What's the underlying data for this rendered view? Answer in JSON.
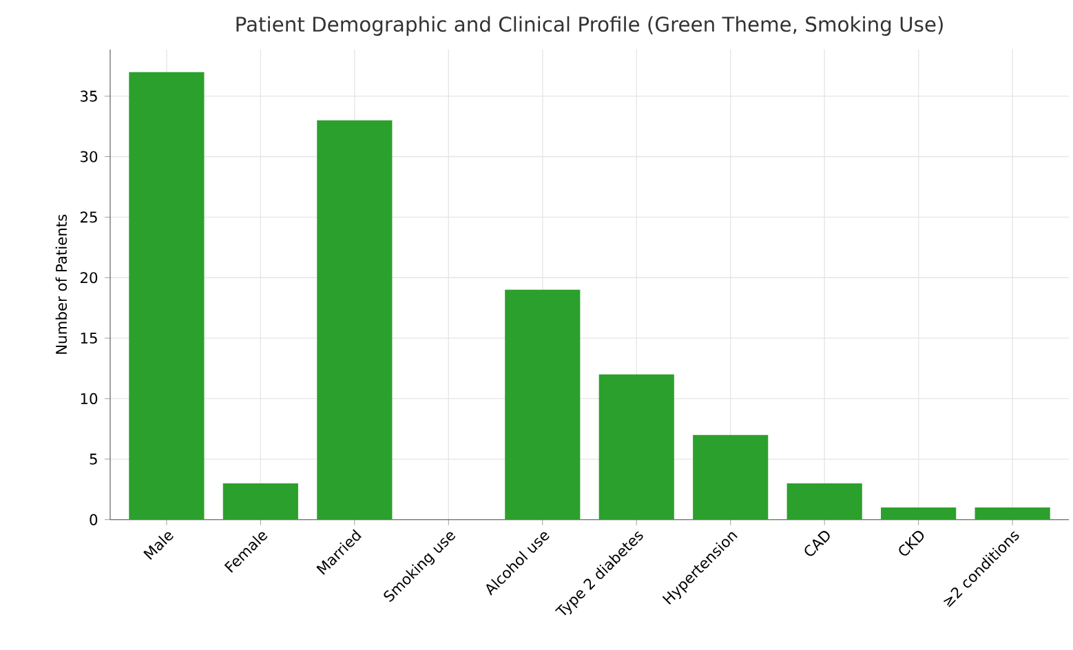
{
  "chart_data": {
    "type": "bar",
    "title": "Patient Demographic and Clinical Profile (Green Theme, Smoking Use)",
    "ylabel": "Number of Patients",
    "categories": [
      "Male",
      "Female",
      "Married",
      "Smoking use",
      "Alcohol use",
      "Type 2 diabetes",
      "Hypertension",
      "CAD",
      "CKD",
      "≥2 conditions"
    ],
    "values": [
      37,
      3,
      33,
      0,
      19,
      12,
      7,
      3,
      1,
      1
    ],
    "color": "#2ca02c",
    "ylim": [
      0,
      38.85
    ],
    "yticks": [
      0,
      5,
      10,
      15,
      20,
      25,
      30,
      35
    ],
    "grid": true
  }
}
